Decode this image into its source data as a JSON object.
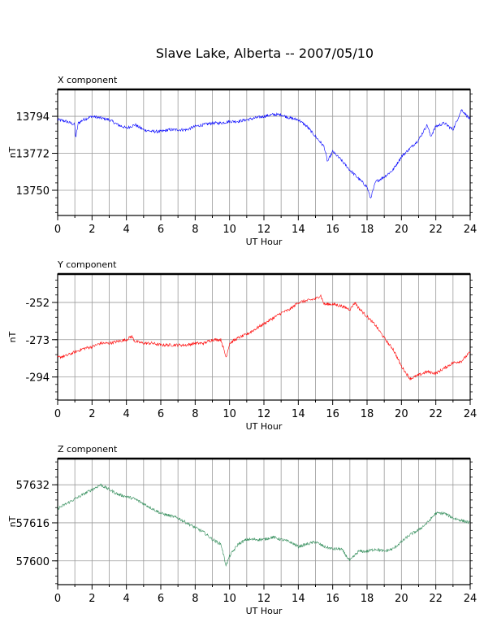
{
  "title": "Slave Lake, Alberta -- 2007/05/10",
  "chart_data": [
    {
      "type": "line",
      "panel_label": "X component",
      "xlabel": "UT Hour",
      "ylabel": "nT",
      "xlim": [
        0,
        24
      ],
      "xticks": [
        0,
        2,
        4,
        6,
        8,
        10,
        12,
        14,
        16,
        18,
        20,
        22,
        24
      ],
      "ylim": [
        13735,
        13810
      ],
      "yticks": [
        13750,
        13772,
        13794
      ],
      "grid": true,
      "color": "#0000ff",
      "series": [
        {
          "x": [
            0,
            0.5,
            1,
            1.05,
            1.2,
            1.5,
            2,
            2.5,
            3,
            3.5,
            4,
            4.5,
            5,
            5.5,
            6,
            6.5,
            7,
            7.5,
            8,
            8.5,
            9,
            9.5,
            10,
            10.5,
            11,
            11.5,
            12,
            12.5,
            13,
            13.5,
            14,
            14.5,
            15,
            15.5,
            15.7,
            16,
            16.5,
            17,
            17.5,
            18,
            18.2,
            18.5,
            19,
            19.5,
            20,
            20.5,
            21,
            21.5,
            21.7,
            22,
            22.5,
            23,
            23.5,
            24
          ],
          "y": [
            13792,
            13791,
            13789,
            13781,
            13790,
            13792,
            13794,
            13793,
            13792,
            13789,
            13787,
            13789,
            13786,
            13785,
            13785,
            13786,
            13786,
            13786,
            13788,
            13789,
            13790,
            13790,
            13791,
            13791,
            13792,
            13793,
            13794,
            13795,
            13795,
            13793,
            13792,
            13788,
            13782,
            13776,
            13767,
            13773,
            13768,
            13762,
            13757,
            13752,
            13745,
            13755,
            13758,
            13762,
            13770,
            13775,
            13780,
            13789,
            13782,
            13788,
            13790,
            13786,
            13798,
            13792
          ]
        }
      ]
    },
    {
      "type": "line",
      "panel_label": "Y component",
      "xlabel": "UT Hour",
      "ylabel": "nT",
      "xlim": [
        0,
        24
      ],
      "xticks": [
        0,
        2,
        4,
        6,
        8,
        10,
        12,
        14,
        16,
        18,
        20,
        22,
        24
      ],
      "ylim": [
        -307,
        -236
      ],
      "yticks": [
        -294,
        -273,
        -252
      ],
      "grid": true,
      "color": "#ff0000",
      "series": [
        {
          "x": [
            0,
            0.5,
            1,
            1.5,
            2,
            2.5,
            3,
            3.5,
            4,
            4.3,
            4.5,
            5,
            5.5,
            6,
            6.5,
            7,
            7.5,
            8,
            8.5,
            9,
            9.5,
            9.8,
            10,
            10.5,
            11,
            11.5,
            12,
            12.5,
            13,
            13.5,
            14,
            14.5,
            15,
            15.3,
            15.5,
            16,
            16.5,
            17,
            17.3,
            17.5,
            18,
            18.5,
            19,
            19.3,
            19.5,
            20,
            20.5,
            21,
            21.5,
            22,
            22.5,
            23,
            23.5,
            24
          ],
          "y": [
            -283,
            -282,
            -280,
            -278,
            -277,
            -275,
            -275,
            -274,
            -273,
            -271,
            -274,
            -275,
            -275,
            -276,
            -276,
            -276,
            -276,
            -275,
            -275,
            -273,
            -273,
            -283,
            -275,
            -272,
            -270,
            -267,
            -264,
            -261,
            -258,
            -256,
            -252,
            -251,
            -250,
            -248,
            -253,
            -253,
            -254,
            -256,
            -252,
            -255,
            -260,
            -265,
            -272,
            -276,
            -278,
            -288,
            -295,
            -293,
            -291,
            -292,
            -289,
            -286,
            -285,
            -280
          ]
        }
      ]
    },
    {
      "type": "line",
      "panel_label": "Z component",
      "xlabel": "UT Hour",
      "ylabel": "nT",
      "xlim": [
        0,
        24
      ],
      "xticks": [
        0,
        2,
        4,
        6,
        8,
        10,
        12,
        14,
        16,
        18,
        20,
        22,
        24
      ],
      "ylim": [
        57590,
        57643
      ],
      "yticks": [
        57600,
        57616,
        57632
      ],
      "grid": true,
      "color": "#2e8b57",
      "series": [
        {
          "x": [
            0,
            0.5,
            1,
            1.5,
            2,
            2.5,
            3,
            3.5,
            4,
            4.5,
            5,
            5.5,
            6,
            6.5,
            7,
            7.5,
            8,
            8.5,
            9,
            9.5,
            9.8,
            10,
            10.5,
            11,
            11.5,
            12,
            12.5,
            13,
            13.5,
            14,
            14.5,
            15,
            15.5,
            16,
            16.5,
            17,
            17.5,
            18,
            18.5,
            19,
            19.5,
            20,
            20.5,
            21,
            21.5,
            22,
            22.5,
            23,
            23.5,
            24
          ],
          "y": [
            57622,
            57624,
            57626,
            57628,
            57630,
            57632,
            57630,
            57628,
            57627,
            57626,
            57624,
            57622,
            57620,
            57619,
            57618,
            57616,
            57614,
            57612,
            57609,
            57607,
            57598,
            57602,
            57607,
            57609,
            57609,
            57609,
            57610,
            57609,
            57608,
            57606,
            57607,
            57608,
            57606,
            57605,
            57605,
            57600,
            57604,
            57604,
            57605,
            57604,
            57605,
            57608,
            57611,
            57613,
            57616,
            57620,
            57620,
            57618,
            57617,
            57616
          ]
        }
      ]
    }
  ]
}
